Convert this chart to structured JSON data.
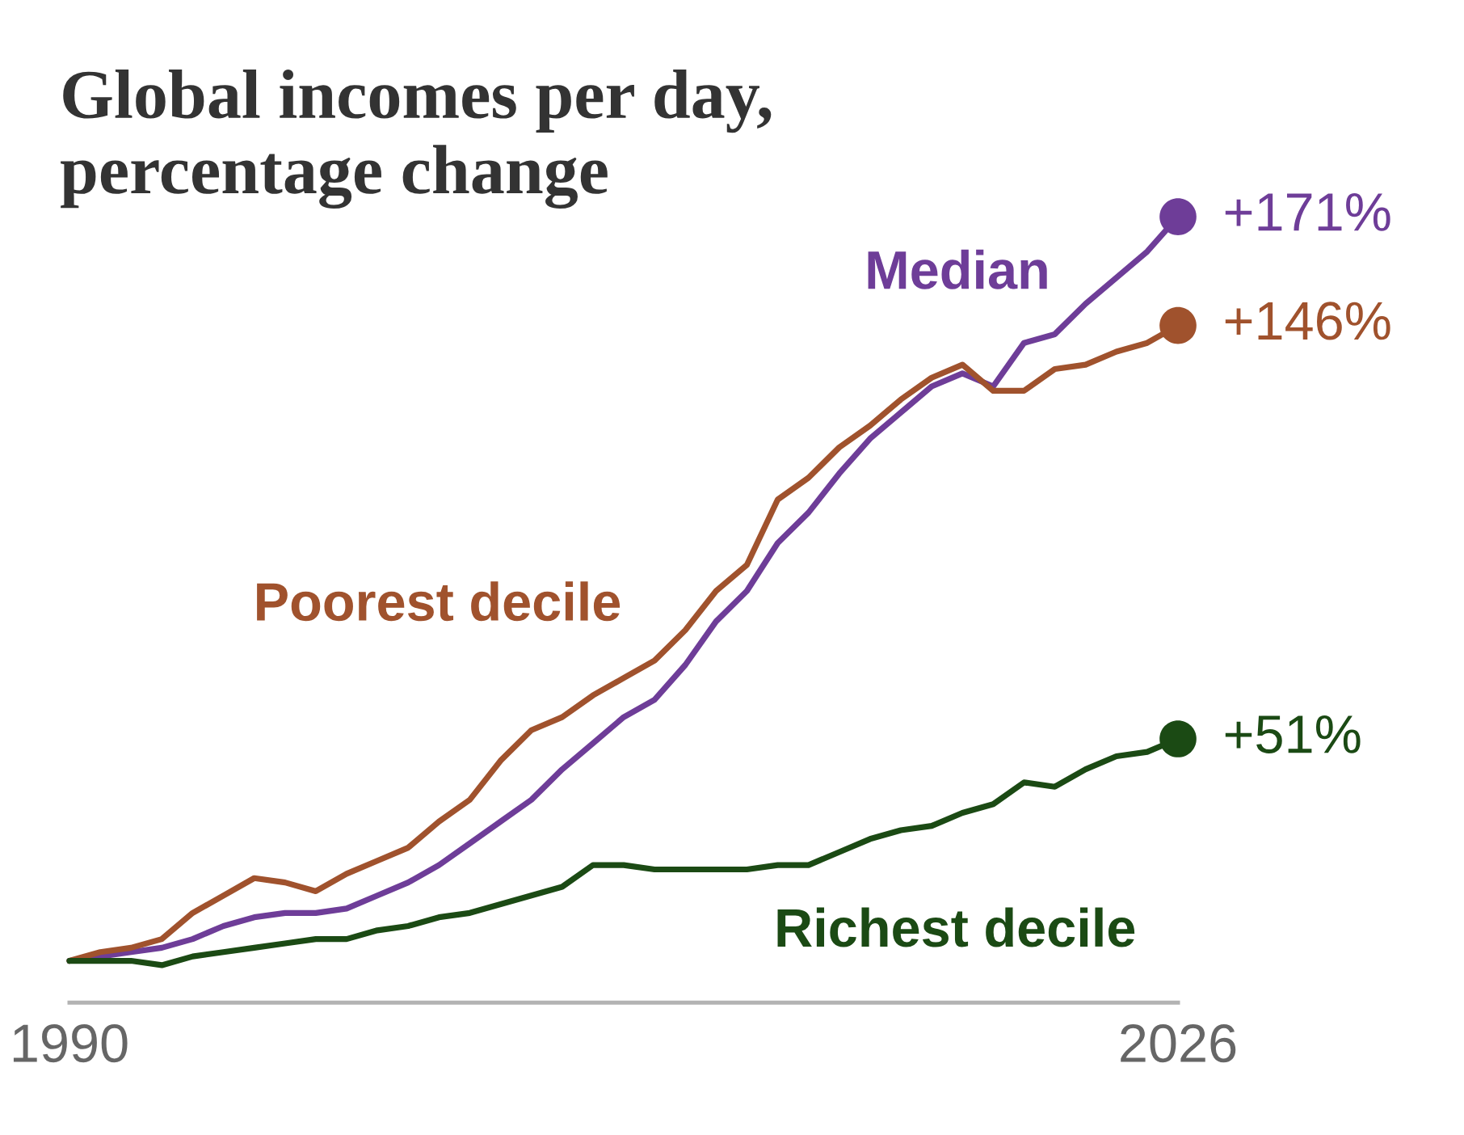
{
  "chart_data": {
    "type": "line",
    "title": "Global incomes per day, percentage change",
    "x": [
      1990,
      1991,
      1992,
      1993,
      1994,
      1995,
      1996,
      1997,
      1998,
      1999,
      2000,
      2001,
      2002,
      2003,
      2004,
      2005,
      2006,
      2007,
      2008,
      2009,
      2010,
      2011,
      2012,
      2013,
      2014,
      2015,
      2016,
      2017,
      2018,
      2019,
      2020,
      2021,
      2022,
      2023,
      2024,
      2025,
      2026
    ],
    "series": [
      {
        "name": "Median",
        "color": "#6e3d98",
        "values": [
          0,
          1,
          2,
          3,
          5,
          8,
          10,
          11,
          11,
          12,
          15,
          18,
          22,
          27,
          32,
          37,
          44,
          50,
          56,
          60,
          68,
          78,
          85,
          96,
          103,
          112,
          120,
          126,
          132,
          135,
          132,
          142,
          144,
          151,
          157,
          163,
          171
        ]
      },
      {
        "name": "Poorest decile",
        "color": "#a0522d",
        "values": [
          0,
          2,
          3,
          5,
          11,
          15,
          19,
          18,
          16,
          20,
          23,
          26,
          32,
          37,
          46,
          53,
          56,
          61,
          65,
          69,
          76,
          85,
          91,
          106,
          111,
          118,
          123,
          129,
          134,
          137,
          131,
          131,
          136,
          137,
          140,
          142,
          146
        ]
      },
      {
        "name": "Richest decile",
        "color": "#1b4a14",
        "values": [
          0,
          0,
          0,
          -1,
          1,
          2,
          3,
          4,
          5,
          5,
          7,
          8,
          10,
          11,
          13,
          15,
          17,
          22,
          22,
          21,
          21,
          21,
          21,
          22,
          22,
          25,
          28,
          30,
          31,
          34,
          36,
          41,
          40,
          44,
          47,
          48,
          51
        ]
      },
      {
        "type": "scatter",
        "marker": "circle",
        "color": "#6e3d98",
        "values": [
          null,
          null,
          null,
          null,
          null,
          null,
          null,
          null,
          null,
          null,
          null,
          null,
          null,
          null,
          null,
          null,
          null,
          null,
          null,
          null,
          null,
          null,
          null,
          null,
          null,
          null,
          null,
          null,
          null,
          null,
          null,
          null,
          null,
          null,
          null,
          null,
          171
        ],
        "value_labels": [
          null,
          null,
          null,
          null,
          null,
          null,
          null,
          null,
          null,
          null,
          null,
          null,
          null,
          null,
          null,
          null,
          null,
          null,
          null,
          null,
          null,
          null,
          null,
          null,
          null,
          null,
          null,
          null,
          null,
          null,
          null,
          null,
          null,
          null,
          null,
          null,
          "+171%"
        ]
      },
      {
        "type": "scatter",
        "marker": "circle",
        "color": "#a0522d",
        "values": [
          null,
          null,
          null,
          null,
          null,
          null,
          null,
          null,
          null,
          null,
          null,
          null,
          null,
          null,
          null,
          null,
          null,
          null,
          null,
          null,
          null,
          null,
          null,
          null,
          null,
          null,
          null,
          null,
          null,
          null,
          null,
          null,
          null,
          null,
          null,
          null,
          146
        ],
        "value_labels": [
          null,
          null,
          null,
          null,
          null,
          null,
          null,
          null,
          null,
          null,
          null,
          null,
          null,
          null,
          null,
          null,
          null,
          null,
          null,
          null,
          null,
          null,
          null,
          null,
          null,
          null,
          null,
          null,
          null,
          null,
          null,
          null,
          null,
          null,
          null,
          null,
          "+146%"
        ]
      },
      {
        "type": "scatter",
        "marker": "circle",
        "color": "#1b4a14",
        "values": [
          null,
          null,
          null,
          null,
          null,
          null,
          null,
          null,
          null,
          null,
          null,
          null,
          null,
          null,
          null,
          null,
          null,
          null,
          null,
          null,
          null,
          null,
          null,
          null,
          null,
          null,
          null,
          null,
          null,
          null,
          null,
          null,
          null,
          null,
          null,
          null,
          51
        ],
        "value_labels": [
          null,
          null,
          null,
          null,
          null,
          null,
          null,
          null,
          null,
          null,
          null,
          null,
          null,
          null,
          null,
          null,
          null,
          null,
          null,
          null,
          null,
          null,
          null,
          null,
          null,
          null,
          null,
          null,
          null,
          null,
          null,
          null,
          null,
          null,
          null,
          null,
          "+51%"
        ]
      }
    ],
    "xlim": [
      1990,
      2026
    ],
    "xticks": [
      1990,
      2026
    ],
    "tick_labels": "x"
  }
}
